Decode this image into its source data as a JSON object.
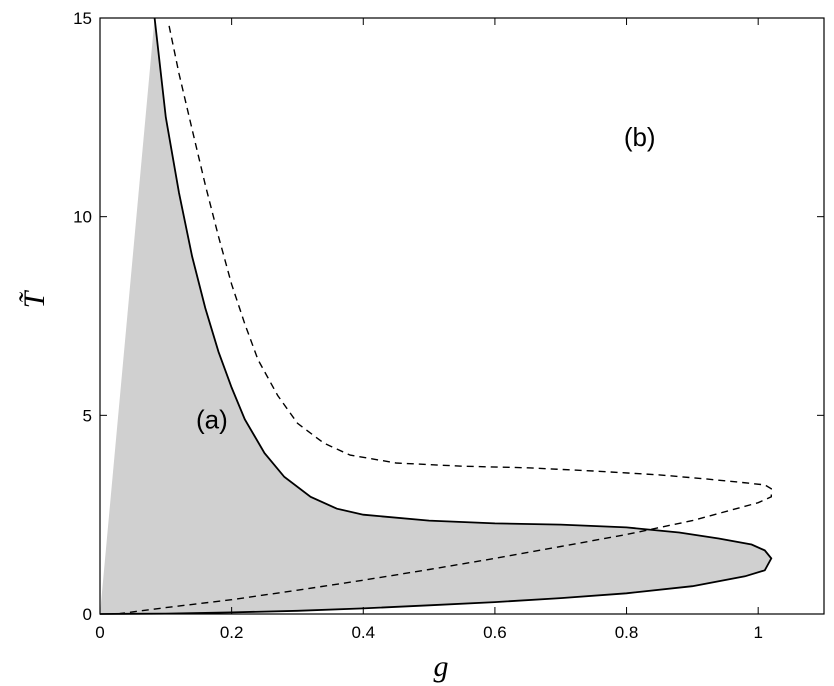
{
  "chart_data": {
    "type": "area",
    "xlabel": "g",
    "ylabel": "T̃",
    "xlim": [
      0,
      1.1
    ],
    "ylim": [
      0,
      15
    ],
    "grid": false,
    "x_ticks": [
      "0",
      "0.2",
      "0.4",
      "0.6",
      "0.8",
      "1"
    ],
    "x_tick_values": [
      0,
      0.2,
      0.4,
      0.6,
      0.8,
      1.0
    ],
    "y_ticks": [
      "0",
      "5",
      "10",
      "15"
    ],
    "y_tick_values": [
      0,
      5,
      10,
      15
    ],
    "annotations": [
      {
        "text": "(a)",
        "x": 0.17,
        "y": 4.9
      },
      {
        "text": "(b)",
        "x": 0.82,
        "y": 12.0
      }
    ],
    "series": [
      {
        "style": "solid",
        "fill": "#d0d0d0",
        "points": [
          [
            0.083,
            15.0
          ],
          [
            0.1,
            12.5
          ],
          [
            0.12,
            10.6
          ],
          [
            0.14,
            9.0
          ],
          [
            0.16,
            7.7
          ],
          [
            0.18,
            6.6
          ],
          [
            0.2,
            5.7
          ],
          [
            0.22,
            4.9
          ],
          [
            0.25,
            4.05
          ],
          [
            0.28,
            3.45
          ],
          [
            0.32,
            2.95
          ],
          [
            0.36,
            2.65
          ],
          [
            0.4,
            2.5
          ],
          [
            0.5,
            2.35
          ],
          [
            0.6,
            2.28
          ],
          [
            0.7,
            2.25
          ],
          [
            0.8,
            2.18
          ],
          [
            0.88,
            2.05
          ],
          [
            0.94,
            1.9
          ],
          [
            0.99,
            1.75
          ],
          [
            1.01,
            1.6
          ],
          [
            1.02,
            1.4
          ],
          [
            1.01,
            1.1
          ],
          [
            0.98,
            0.95
          ],
          [
            0.9,
            0.7
          ],
          [
            0.8,
            0.52
          ],
          [
            0.7,
            0.4
          ],
          [
            0.6,
            0.3
          ],
          [
            0.5,
            0.22
          ],
          [
            0.4,
            0.14
          ],
          [
            0.3,
            0.08
          ],
          [
            0.2,
            0.04
          ],
          [
            0.1,
            0.01
          ],
          [
            0.0,
            0.0
          ]
        ]
      },
      {
        "style": "dashed",
        "points": [
          [
            0.105,
            14.8
          ],
          [
            0.12,
            13.6
          ],
          [
            0.14,
            12.2
          ],
          [
            0.16,
            10.8
          ],
          [
            0.18,
            9.5
          ],
          [
            0.2,
            8.3
          ],
          [
            0.22,
            7.3
          ],
          [
            0.24,
            6.4
          ],
          [
            0.27,
            5.5
          ],
          [
            0.3,
            4.8
          ],
          [
            0.34,
            4.3
          ],
          [
            0.38,
            4.0
          ],
          [
            0.45,
            3.8
          ],
          [
            0.55,
            3.72
          ],
          [
            0.65,
            3.68
          ],
          [
            0.75,
            3.6
          ],
          [
            0.85,
            3.5
          ],
          [
            0.92,
            3.4
          ],
          [
            0.97,
            3.32
          ],
          [
            1.01,
            3.25
          ],
          [
            1.02,
            3.15
          ],
          [
            1.02,
            2.95
          ],
          [
            1.0,
            2.8
          ],
          [
            0.9,
            2.35
          ],
          [
            0.8,
            2.0
          ],
          [
            0.7,
            1.7
          ],
          [
            0.6,
            1.4
          ],
          [
            0.5,
            1.12
          ],
          [
            0.4,
            0.85
          ],
          [
            0.3,
            0.6
          ],
          [
            0.2,
            0.36
          ],
          [
            0.1,
            0.16
          ],
          [
            0.03,
            0.01
          ]
        ]
      }
    ]
  }
}
